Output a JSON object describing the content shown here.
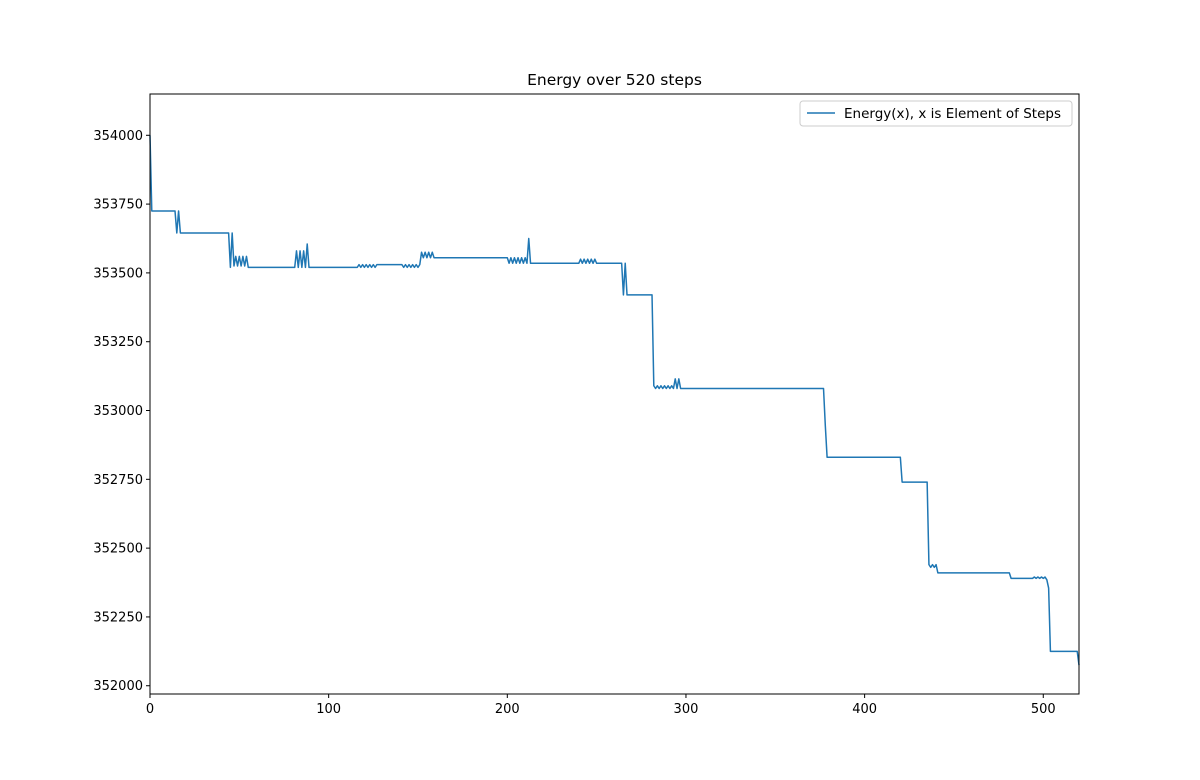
{
  "chart_data": {
    "type": "line",
    "title": "Energy over  520 steps",
    "xlabel": "",
    "ylabel": "",
    "xlim": [
      0,
      520
    ],
    "ylim": [
      351970,
      354150
    ],
    "xticks": [
      0,
      100,
      200,
      300,
      400,
      500
    ],
    "yticks": [
      352000,
      352250,
      352500,
      352750,
      353000,
      353250,
      353500,
      353750,
      354000
    ],
    "grid": false,
    "legend_position": "top-right",
    "series": [
      {
        "name": "Energy(x), x is Element of Steps",
        "color": "#1f77b4",
        "points": [
          [
            0,
            354000
          ],
          [
            1,
            353725
          ],
          [
            14,
            353725
          ],
          [
            15,
            353645
          ],
          [
            16,
            353725
          ],
          [
            17,
            353645
          ],
          [
            44,
            353645
          ],
          [
            45,
            353520
          ],
          [
            46,
            353645
          ],
          [
            47,
            353525
          ],
          [
            48,
            353560
          ],
          [
            49,
            353525
          ],
          [
            50,
            353560
          ],
          [
            51,
            353525
          ],
          [
            52,
            353560
          ],
          [
            53,
            353525
          ],
          [
            54,
            353560
          ],
          [
            55,
            353520
          ],
          [
            81,
            353520
          ],
          [
            82,
            353580
          ],
          [
            83,
            353520
          ],
          [
            84,
            353580
          ],
          [
            85,
            353520
          ],
          [
            86,
            353580
          ],
          [
            87,
            353520
          ],
          [
            88,
            353605
          ],
          [
            89,
            353520
          ],
          [
            116,
            353520
          ],
          [
            117,
            353530
          ],
          [
            118,
            353520
          ],
          [
            119,
            353530
          ],
          [
            120,
            353520
          ],
          [
            121,
            353530
          ],
          [
            122,
            353520
          ],
          [
            123,
            353530
          ],
          [
            124,
            353520
          ],
          [
            125,
            353530
          ],
          [
            126,
            353520
          ],
          [
            127,
            353530
          ],
          [
            141,
            353530
          ],
          [
            142,
            353520
          ],
          [
            143,
            353530
          ],
          [
            144,
            353520
          ],
          [
            145,
            353530
          ],
          [
            146,
            353520
          ],
          [
            147,
            353530
          ],
          [
            148,
            353520
          ],
          [
            149,
            353530
          ],
          [
            150,
            353520
          ],
          [
            151,
            353530
          ],
          [
            152,
            353575
          ],
          [
            153,
            353555
          ],
          [
            154,
            353575
          ],
          [
            155,
            353555
          ],
          [
            156,
            353575
          ],
          [
            157,
            353555
          ],
          [
            158,
            353575
          ],
          [
            159,
            353555
          ],
          [
            200,
            353555
          ],
          [
            201,
            353535
          ],
          [
            202,
            353555
          ],
          [
            203,
            353535
          ],
          [
            204,
            353555
          ],
          [
            205,
            353535
          ],
          [
            206,
            353555
          ],
          [
            207,
            353535
          ],
          [
            208,
            353555
          ],
          [
            209,
            353535
          ],
          [
            210,
            353555
          ],
          [
            211,
            353535
          ],
          [
            212,
            353625
          ],
          [
            213,
            353535
          ],
          [
            240,
            353535
          ],
          [
            241,
            353550
          ],
          [
            242,
            353535
          ],
          [
            243,
            353550
          ],
          [
            244,
            353535
          ],
          [
            245,
            353550
          ],
          [
            246,
            353535
          ],
          [
            247,
            353550
          ],
          [
            248,
            353535
          ],
          [
            249,
            353550
          ],
          [
            250,
            353535
          ],
          [
            264,
            353535
          ],
          [
            265,
            353420
          ],
          [
            266,
            353535
          ],
          [
            267,
            353420
          ],
          [
            281,
            353420
          ],
          [
            282,
            353090
          ],
          [
            283,
            353080
          ],
          [
            284,
            353090
          ],
          [
            285,
            353080
          ],
          [
            286,
            353090
          ],
          [
            287,
            353080
          ],
          [
            288,
            353090
          ],
          [
            289,
            353080
          ],
          [
            290,
            353090
          ],
          [
            291,
            353080
          ],
          [
            292,
            353090
          ],
          [
            293,
            353080
          ],
          [
            294,
            353115
          ],
          [
            295,
            353080
          ],
          [
            296,
            353115
          ],
          [
            297,
            353080
          ],
          [
            377,
            353080
          ],
          [
            378,
            352945
          ],
          [
            379,
            352830
          ],
          [
            420,
            352830
          ],
          [
            421,
            352740
          ],
          [
            435,
            352740
          ],
          [
            436,
            352440
          ],
          [
            437,
            352430
          ],
          [
            438,
            352440
          ],
          [
            439,
            352430
          ],
          [
            440,
            352440
          ],
          [
            441,
            352410
          ],
          [
            481,
            352410
          ],
          [
            482,
            352390
          ],
          [
            494,
            352390
          ],
          [
            495,
            352395
          ],
          [
            496,
            352390
          ],
          [
            497,
            352395
          ],
          [
            498,
            352390
          ],
          [
            499,
            352395
          ],
          [
            500,
            352390
          ],
          [
            501,
            352395
          ],
          [
            502,
            352385
          ],
          [
            503,
            352355
          ],
          [
            504,
            352125
          ],
          [
            519,
            352125
          ],
          [
            520,
            352075
          ]
        ]
      }
    ]
  }
}
